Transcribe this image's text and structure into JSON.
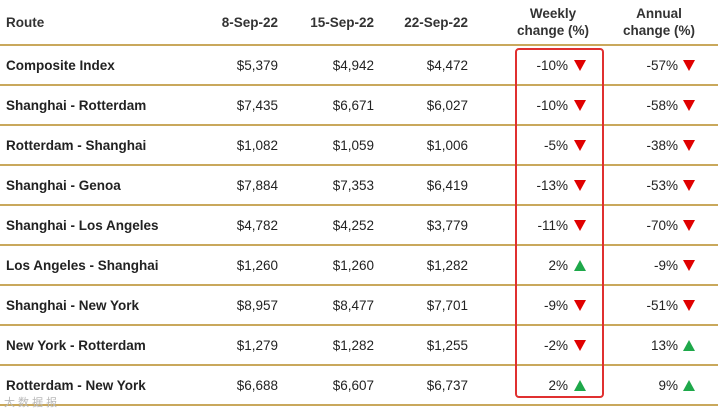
{
  "header": {
    "route": "Route",
    "date1": "8-Sep-22",
    "date2": "15-Sep-22",
    "date3": "22-Sep-22",
    "weekly_line1": "Weekly",
    "weekly_line2": "change (%)",
    "annual_line1": "Annual",
    "annual_line2": "change (%)"
  },
  "rows": [
    {
      "route": "Composite Index",
      "v1": "$5,379",
      "v2": "$4,942",
      "v3": "$4,472",
      "weekly": "-10%",
      "weekly_dir": "down",
      "annual": "-57%",
      "annual_dir": "down"
    },
    {
      "route": "Shanghai - Rotterdam",
      "v1": "$7,435",
      "v2": "$6,671",
      "v3": "$6,027",
      "weekly": "-10%",
      "weekly_dir": "down",
      "annual": "-58%",
      "annual_dir": "down"
    },
    {
      "route": "Rotterdam - Shanghai",
      "v1": "$1,082",
      "v2": "$1,059",
      "v3": "$1,006",
      "weekly": "-5%",
      "weekly_dir": "down",
      "annual": "-38%",
      "annual_dir": "down"
    },
    {
      "route": "Shanghai - Genoa",
      "v1": "$7,884",
      "v2": "$7,353",
      "v3": "$6,419",
      "weekly": "-13%",
      "weekly_dir": "down",
      "annual": "-53%",
      "annual_dir": "down"
    },
    {
      "route": "Shanghai - Los Angeles",
      "v1": "$4,782",
      "v2": "$4,252",
      "v3": "$3,779",
      "weekly": "-11%",
      "weekly_dir": "down",
      "annual": "-70%",
      "annual_dir": "down"
    },
    {
      "route": "Los Angeles - Shanghai",
      "v1": "$1,260",
      "v2": "$1,260",
      "v3": "$1,282",
      "weekly": "2%",
      "weekly_dir": "up",
      "annual": "-9%",
      "annual_dir": "down"
    },
    {
      "route": "Shanghai - New York",
      "v1": "$8,957",
      "v2": "$8,477",
      "v3": "$7,701",
      "weekly": "-9%",
      "weekly_dir": "down",
      "annual": "-51%",
      "annual_dir": "down"
    },
    {
      "route": "New York - Rotterdam",
      "v1": "$1,279",
      "v2": "$1,282",
      "v3": "$1,255",
      "weekly": "-2%",
      "weekly_dir": "down",
      "annual": "13%",
      "annual_dir": "up"
    },
    {
      "route": "Rotterdam - New York",
      "v1": "$6,688",
      "v2": "$6,607",
      "v3": "$6,737",
      "weekly": "2%",
      "weekly_dir": "up",
      "annual": "9%",
      "annual_dir": "up"
    }
  ],
  "watermark": "大 数 据 报",
  "colors": {
    "down": "#e00000",
    "up": "#1ea84a",
    "divider": "#c9a85c",
    "highlight": "#e03030"
  }
}
